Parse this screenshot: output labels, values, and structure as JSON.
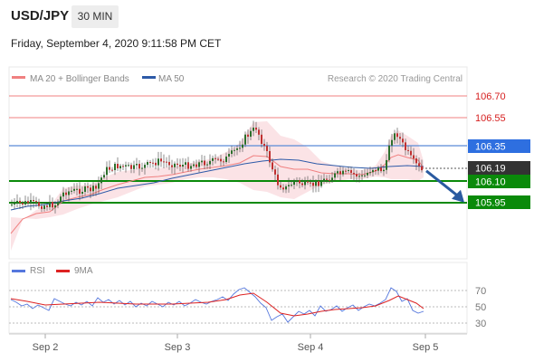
{
  "header": {
    "pair": "USD/JPY",
    "timeframe": "30 MIN",
    "datetime": "Friday, September 4, 2020 9:11:58 PM CET"
  },
  "colors": {
    "bollinger": "#f08080",
    "ma50": "#2e5aa8",
    "support": "#0a8a0a",
    "pivot": "#5a8ad8",
    "candle_up": "#2b6f2b",
    "candle_down": "#c03030",
    "rsi": "#5577dd",
    "rsi_ma": "#dd2222",
    "arrow": "#2a5aa0",
    "current_label": "#333333"
  },
  "chart_data": [
    {
      "type": "candlestick",
      "title": "",
      "legend": [
        {
          "name": "MA 20 + Bollinger Bands",
          "color": "#f08080"
        },
        {
          "name": "MA 50",
          "color": "#2e5aa8"
        }
      ],
      "watermark": "Research © 2020 Trading Central",
      "x_ticks": [
        "Sep 2",
        "Sep 3",
        "Sep 4",
        "Sep 5"
      ],
      "ylim": [
        105.78,
        106.83
      ],
      "current_price": {
        "value": 106.19,
        "label": "106.19"
      },
      "levels": [
        {
          "value": 106.7,
          "label": "106.70",
          "style": "resistance"
        },
        {
          "value": 106.55,
          "label": "106.55",
          "style": "resistance"
        },
        {
          "value": 106.35,
          "label": "106.35",
          "style": "pivot"
        },
        {
          "value": 106.1,
          "label": "106.10",
          "style": "support"
        },
        {
          "value": 105.95,
          "label": "105.95",
          "style": "support"
        }
      ],
      "forecast_arrow": {
        "from": 106.17,
        "to": 105.97
      }
    },
    {
      "type": "line",
      "title": "",
      "legend": [
        {
          "name": "RSI",
          "color": "#5577dd"
        },
        {
          "name": "9MA",
          "color": "#dd2222"
        }
      ],
      "ylim": [
        25,
        78
      ],
      "y_ticks": [
        70,
        50,
        30
      ],
      "y_tick_labels": [
        "70",
        "50",
        "30"
      ]
    }
  ]
}
